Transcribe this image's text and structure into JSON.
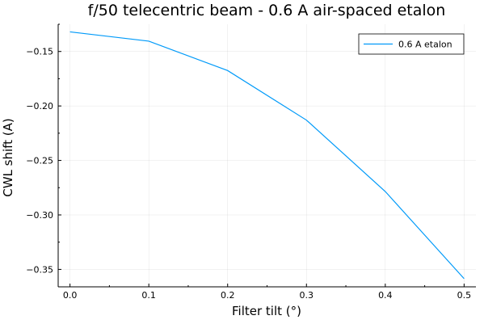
{
  "chart_data": {
    "type": "line",
    "title": "f/50 telecentric beam - 0.6 A air-spaced etalon",
    "xlabel": "Filter tilt (°)",
    "ylabel": "CWL shift (A)",
    "xlim": [
      -0.015,
      0.515
    ],
    "ylim": [
      -0.366,
      -0.125
    ],
    "x_ticks": [
      0.0,
      0.1,
      0.2,
      0.3,
      0.4,
      0.5
    ],
    "x_tick_labels": [
      "0.0",
      "0.1",
      "0.2",
      "0.3",
      "0.4",
      "0.5"
    ],
    "y_ticks": [
      -0.15,
      -0.2,
      -0.25,
      -0.3,
      -0.35
    ],
    "y_tick_labels": [
      "-0.15",
      "-0.20",
      "-0.25",
      "-0.30",
      "-0.35"
    ],
    "grid": true,
    "legend_position": "top-right",
    "series": [
      {
        "name": "0.6 A etalon",
        "color": "#009af9",
        "x": [
          0.0,
          0.1,
          0.2,
          0.3,
          0.4,
          0.5
        ],
        "y": [
          -0.132,
          -0.1405,
          -0.1675,
          -0.213,
          -0.2785,
          -0.3585
        ]
      }
    ]
  }
}
